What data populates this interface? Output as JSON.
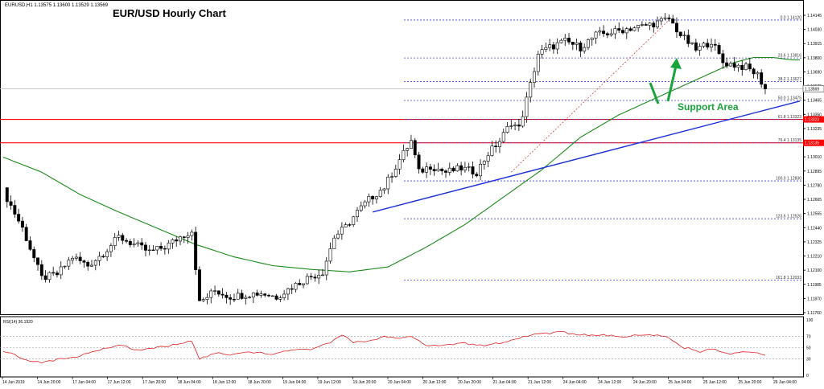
{
  "chart_data": {
    "type": "candlestick",
    "symbol_info": "EURUSD,H1  1.13575 1.13600 1.13529 1.13569",
    "title": "EUR/USD Hourly Chart",
    "current_price_label": "1.13569",
    "price_axis": {
      "ylim": [
        1.1176,
        1.1421
      ],
      "tick_labels": [
        "1.14145",
        "1.14030",
        "1.13915",
        "1.13800",
        "1.13690",
        "1.13575",
        "1.13465",
        "1.13350",
        "1.13235",
        "1.13120",
        "1.13010",
        "1.12895",
        "1.12780",
        "1.12665",
        "1.12555",
        "1.12440",
        "1.12325",
        "1.12210",
        "1.12100",
        "1.11985",
        "1.11870",
        "1.11760"
      ]
    },
    "x_tick_labels": [
      "14 Jun 2019",
      "14 Jun 20:00",
      "17 Jun 04:00",
      "17 Jun 12:00",
      "17 Jun 20:00",
      "18 Jun 04:00",
      "18 Jun 12:00",
      "18 Jun 20:00",
      "19 Jun 04:00",
      "19 Jun 12:00",
      "19 Jun 20:00",
      "20 Jun 04:00",
      "20 Jun 12:00",
      "20 Jun 20:00",
      "21 Jun 04:00",
      "21 Jun 12:00",
      "24 Jun 04:00",
      "24 Jun 12:00",
      "24 Jun 20:00",
      "25 Jun 04:00",
      "25 Jun 12:00",
      "25 Jun 20:00",
      "26 Jun 04:00"
    ],
    "price_series": [
      {
        "index": 0,
        "price": 1.1275
      },
      {
        "index": 5,
        "price": 1.1245
      },
      {
        "index": 10,
        "price": 1.1205
      },
      {
        "index": 14,
        "price": 1.1208
      },
      {
        "index": 18,
        "price": 1.1222
      },
      {
        "index": 22,
        "price": 1.1215
      },
      {
        "index": 26,
        "price": 1.1225
      },
      {
        "index": 30,
        "price": 1.1238
      },
      {
        "index": 34,
        "price": 1.1232
      },
      {
        "index": 38,
        "price": 1.1226
      },
      {
        "index": 42,
        "price": 1.123
      },
      {
        "index": 46,
        "price": 1.1238
      },
      {
        "index": 49,
        "price": 1.1243
      },
      {
        "index": 51,
        "price": 1.1185
      },
      {
        "index": 55,
        "price": 1.1195
      },
      {
        "index": 59,
        "price": 1.119
      },
      {
        "index": 63,
        "price": 1.1192
      },
      {
        "index": 67,
        "price": 1.1193
      },
      {
        "index": 71,
        "price": 1.119
      },
      {
        "index": 75,
        "price": 1.1198
      },
      {
        "index": 79,
        "price": 1.1205
      },
      {
        "index": 83,
        "price": 1.121
      },
      {
        "index": 86,
        "price": 1.1238
      },
      {
        "index": 89,
        "price": 1.1246
      },
      {
        "index": 92,
        "price": 1.1258
      },
      {
        "index": 95,
        "price": 1.1268
      },
      {
        "index": 99,
        "price": 1.1278
      },
      {
        "index": 103,
        "price": 1.13
      },
      {
        "index": 106,
        "price": 1.1315
      },
      {
        "index": 108,
        "price": 1.129
      },
      {
        "index": 111,
        "price": 1.1295
      },
      {
        "index": 115,
        "price": 1.129
      },
      {
        "index": 119,
        "price": 1.1293
      },
      {
        "index": 123,
        "price": 1.129
      },
      {
        "index": 126,
        "price": 1.1305
      },
      {
        "index": 129,
        "price": 1.1315
      },
      {
        "index": 132,
        "price": 1.133
      },
      {
        "index": 134,
        "price": 1.1325
      },
      {
        "index": 137,
        "price": 1.136
      },
      {
        "index": 139,
        "price": 1.1385
      },
      {
        "index": 142,
        "price": 1.139
      },
      {
        "index": 146,
        "price": 1.1395
      },
      {
        "index": 150,
        "price": 1.139
      },
      {
        "index": 154,
        "price": 1.14
      },
      {
        "index": 158,
        "price": 1.1402
      },
      {
        "index": 162,
        "price": 1.1405
      },
      {
        "index": 166,
        "price": 1.1407
      },
      {
        "index": 170,
        "price": 1.141
      },
      {
        "index": 173,
        "price": 1.1413
      },
      {
        "index": 176,
        "price": 1.14
      },
      {
        "index": 180,
        "price": 1.1388
      },
      {
        "index": 184,
        "price": 1.1395
      },
      {
        "index": 187,
        "price": 1.1378
      },
      {
        "index": 190,
        "price": 1.1376
      },
      {
        "index": 193,
        "price": 1.1374
      },
      {
        "index": 196,
        "price": 1.1368
      },
      {
        "index": 198,
        "price": 1.1357
      }
    ],
    "moving_average": [
      {
        "index": 0,
        "price": 1.1302
      },
      {
        "index": 10,
        "price": 1.129
      },
      {
        "index": 20,
        "price": 1.1272
      },
      {
        "index": 30,
        "price": 1.1258
      },
      {
        "index": 40,
        "price": 1.1245
      },
      {
        "index": 50,
        "price": 1.1232
      },
      {
        "index": 60,
        "price": 1.1222
      },
      {
        "index": 70,
        "price": 1.1215
      },
      {
        "index": 80,
        "price": 1.1212
      },
      {
        "index": 90,
        "price": 1.121
      },
      {
        "index": 100,
        "price": 1.1214
      },
      {
        "index": 110,
        "price": 1.123
      },
      {
        "index": 120,
        "price": 1.1248
      },
      {
        "index": 130,
        "price": 1.127
      },
      {
        "index": 140,
        "price": 1.1292
      },
      {
        "index": 150,
        "price": 1.1318
      },
      {
        "index": 160,
        "price": 1.1336
      },
      {
        "index": 170,
        "price": 1.135
      },
      {
        "index": 180,
        "price": 1.1364
      },
      {
        "index": 190,
        "price": 1.1378
      },
      {
        "index": 195,
        "price": 1.1382
      },
      {
        "index": 200,
        "price": 1.1382
      },
      {
        "index": 205,
        "price": 1.138
      }
    ],
    "fibonacci_levels": [
      {
        "label": "0.0 1.14120",
        "price": 1.1412
      },
      {
        "label": "23.6 1.13816",
        "price": 1.13816
      },
      {
        "label": "38.2 1.13627",
        "price": 1.13627
      },
      {
        "label": "50.0 1.13475",
        "price": 1.13475
      },
      {
        "label": "61.8 1.13323",
        "price": 1.13323
      },
      {
        "label": "76.4 1.13135",
        "price": 1.13135
      },
      {
        "label": "100.0 1.12830",
        "price": 1.1283
      },
      {
        "label": "123.6 1.12526",
        "price": 1.12526
      },
      {
        "label": "161.8 1.12033",
        "price": 1.12033
      }
    ],
    "horizontal_lines": [
      {
        "label": "1.13323",
        "price": 1.13323,
        "color": "#ff0000"
      },
      {
        "label": "1.13135",
        "price": 1.13135,
        "color": "#ff0000"
      },
      {
        "price": 1.13569,
        "color": "#c0c0c0"
      }
    ],
    "trend_line": {
      "from": {
        "index": 96,
        "price": 1.1258
      },
      "to": {
        "index": 207,
        "price": 1.1347
      },
      "color": "#1a2fd6"
    },
    "fib_connector": {
      "from": {
        "index": 132,
        "price": 1.129
      },
      "to": {
        "index": 173,
        "price": 1.1412
      }
    },
    "annotation": {
      "label": "Support Area",
      "color": "#18a33b"
    },
    "rsi": {
      "label": "RSI(14) 36.1920",
      "ylim": [
        0,
        100
      ],
      "tick_labels": [
        "100",
        "70",
        "50",
        "30",
        "0"
      ],
      "levels": [
        70,
        50,
        30
      ],
      "series": [
        {
          "index": 0,
          "value": 45
        },
        {
          "index": 5,
          "value": 30
        },
        {
          "index": 10,
          "value": 22
        },
        {
          "index": 15,
          "value": 30
        },
        {
          "index": 20,
          "value": 35
        },
        {
          "index": 25,
          "value": 45
        },
        {
          "index": 30,
          "value": 55
        },
        {
          "index": 35,
          "value": 45
        },
        {
          "index": 40,
          "value": 50
        },
        {
          "index": 45,
          "value": 55
        },
        {
          "index": 49,
          "value": 62
        },
        {
          "index": 51,
          "value": 30
        },
        {
          "index": 55,
          "value": 40
        },
        {
          "index": 60,
          "value": 37
        },
        {
          "index": 65,
          "value": 42
        },
        {
          "index": 70,
          "value": 38
        },
        {
          "index": 75,
          "value": 45
        },
        {
          "index": 80,
          "value": 48
        },
        {
          "index": 85,
          "value": 60
        },
        {
          "index": 88,
          "value": 72
        },
        {
          "index": 91,
          "value": 60
        },
        {
          "index": 95,
          "value": 62
        },
        {
          "index": 99,
          "value": 70
        },
        {
          "index": 103,
          "value": 65
        },
        {
          "index": 106,
          "value": 72
        },
        {
          "index": 110,
          "value": 55
        },
        {
          "index": 115,
          "value": 55
        },
        {
          "index": 120,
          "value": 58
        },
        {
          "index": 125,
          "value": 52
        },
        {
          "index": 130,
          "value": 60
        },
        {
          "index": 135,
          "value": 70
        },
        {
          "index": 140,
          "value": 75
        },
        {
          "index": 145,
          "value": 78
        },
        {
          "index": 150,
          "value": 72
        },
        {
          "index": 155,
          "value": 74
        },
        {
          "index": 160,
          "value": 70
        },
        {
          "index": 165,
          "value": 72
        },
        {
          "index": 170,
          "value": 74
        },
        {
          "index": 173,
          "value": 68
        },
        {
          "index": 177,
          "value": 50
        },
        {
          "index": 181,
          "value": 42
        },
        {
          "index": 185,
          "value": 48
        },
        {
          "index": 188,
          "value": 38
        },
        {
          "index": 191,
          "value": 42
        },
        {
          "index": 195,
          "value": 40
        },
        {
          "index": 198,
          "value": 36
        }
      ]
    }
  }
}
